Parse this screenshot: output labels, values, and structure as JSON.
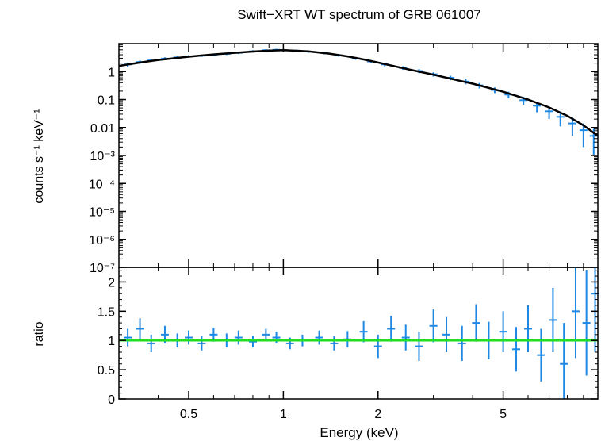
{
  "chart_data": [
    {
      "type": "scatter",
      "title": "Swift−XRT WT spectrum of GRB 061007",
      "ylabel": "counts s⁻¹ keV⁻¹",
      "xlabel": "",
      "x_scale": "log",
      "y_scale": "log",
      "xlim": [
        0.3,
        10
      ],
      "ylim": [
        1e-07,
        10
      ],
      "y_ticks": [
        {
          "value": 1,
          "label": "1"
        },
        {
          "value": 0.1,
          "label": "0.1"
        },
        {
          "value": 0.01,
          "label": "0.01"
        },
        {
          "value": 0.001,
          "label": "10⁻³"
        },
        {
          "value": 0.0001,
          "label": "10⁻⁴"
        },
        {
          "value": 1e-05,
          "label": "10⁻⁵"
        },
        {
          "value": 1e-06,
          "label": "10⁻⁶"
        },
        {
          "value": 1e-07,
          "label": "10⁻⁷"
        }
      ],
      "series": [
        {
          "color": "#1e88e5",
          "x": [
            0.32,
            0.35,
            0.38,
            0.42,
            0.46,
            0.5,
            0.55,
            0.6,
            0.66,
            0.72,
            0.8,
            0.88,
            0.95,
            1.0,
            1.1,
            1.2,
            1.35,
            1.5,
            1.7,
            1.9,
            2.1,
            2.4,
            2.7,
            3.0,
            3.4,
            3.8,
            4.2,
            4.7,
            5.2,
            5.8,
            6.4,
            7.0,
            7.6,
            8.3,
            9.0,
            9.7
          ],
          "y": [
            1.8,
            2.2,
            2.5,
            2.9,
            3.2,
            3.5,
            3.7,
            4.0,
            4.3,
            4.7,
            5.3,
            5.8,
            6.0,
            5.9,
            5.6,
            5.2,
            4.6,
            3.8,
            3.0,
            2.3,
            1.8,
            1.35,
            1.05,
            0.8,
            0.6,
            0.44,
            0.32,
            0.22,
            0.15,
            0.095,
            0.06,
            0.038,
            0.024,
            0.014,
            0.008,
            0.005
          ],
          "err": [
            0.3,
            0.3,
            0.3,
            0.35,
            0.35,
            0.35,
            0.35,
            0.4,
            0.4,
            0.45,
            0.5,
            0.5,
            0.55,
            0.55,
            0.5,
            0.5,
            0.45,
            0.4,
            0.35,
            0.3,
            0.25,
            0.2,
            0.18,
            0.14,
            0.11,
            0.09,
            0.07,
            0.05,
            0.04,
            0.03,
            0.025,
            0.018,
            0.013,
            0.009,
            0.006,
            0.004
          ]
        },
        {
          "color": "#000000",
          "type": "line",
          "x": [
            0.3,
            0.35,
            0.4,
            0.5,
            0.6,
            0.7,
            0.8,
            0.9,
            1.0,
            1.2,
            1.4,
            1.6,
            1.8,
            2.0,
            2.5,
            3.0,
            3.5,
            4.0,
            5.0,
            6.0,
            7.0,
            8.0,
            9.0,
            10.0
          ],
          "y": [
            1.6,
            2.1,
            2.6,
            3.4,
            4.1,
            4.7,
            5.2,
            5.6,
            5.8,
            5.3,
            4.4,
            3.5,
            2.7,
            2.1,
            1.2,
            0.78,
            0.52,
            0.37,
            0.19,
            0.1,
            0.052,
            0.026,
            0.012,
            0.005
          ]
        }
      ]
    },
    {
      "type": "scatter",
      "title": "",
      "ylabel": "ratio",
      "xlabel": "Energy (keV)",
      "x_scale": "log",
      "xlim": [
        0.3,
        10
      ],
      "ylim": [
        0,
        2.25
      ],
      "y_ticks": [
        {
          "value": 0,
          "label": "0"
        },
        {
          "value": 0.5,
          "label": "0.5"
        },
        {
          "value": 1,
          "label": "1"
        },
        {
          "value": 1.5,
          "label": "1.5"
        },
        {
          "value": 2,
          "label": "2"
        }
      ],
      "x_ticks": [
        {
          "value": 0.5,
          "label": "0.5"
        },
        {
          "value": 1,
          "label": "1"
        },
        {
          "value": 2,
          "label": "2"
        },
        {
          "value": 5,
          "label": "5"
        }
      ],
      "reference_line": {
        "y": 1,
        "color": "#22dd22"
      },
      "series": [
        {
          "color": "#1e88e5",
          "x": [
            0.32,
            0.35,
            0.38,
            0.42,
            0.46,
            0.5,
            0.55,
            0.6,
            0.66,
            0.72,
            0.8,
            0.88,
            0.95,
            1.05,
            1.15,
            1.3,
            1.45,
            1.6,
            1.8,
            2.0,
            2.2,
            2.45,
            2.7,
            3.0,
            3.3,
            3.7,
            4.1,
            4.5,
            5.0,
            5.5,
            6.0,
            6.6,
            7.2,
            7.8,
            8.5,
            9.2,
            9.8
          ],
          "y": [
            1.05,
            1.2,
            0.95,
            1.1,
            1.0,
            1.05,
            0.95,
            1.1,
            1.0,
            1.05,
            0.98,
            1.1,
            1.05,
            0.95,
            1.0,
            1.05,
            0.95,
            1.02,
            1.15,
            0.9,
            1.2,
            1.05,
            0.9,
            1.25,
            1.1,
            0.95,
            1.3,
            1.0,
            1.15,
            0.85,
            1.2,
            0.75,
            1.35,
            0.6,
            1.5,
            1.3,
            1.8
          ],
          "err": [
            0.15,
            0.18,
            0.15,
            0.15,
            0.12,
            0.12,
            0.12,
            0.12,
            0.12,
            0.12,
            0.1,
            0.1,
            0.1,
            0.1,
            0.1,
            0.12,
            0.12,
            0.14,
            0.18,
            0.2,
            0.22,
            0.22,
            0.25,
            0.28,
            0.3,
            0.3,
            0.32,
            0.32,
            0.35,
            0.38,
            0.4,
            0.45,
            0.55,
            0.7,
            0.8,
            0.9,
            1.0
          ]
        }
      ]
    }
  ]
}
